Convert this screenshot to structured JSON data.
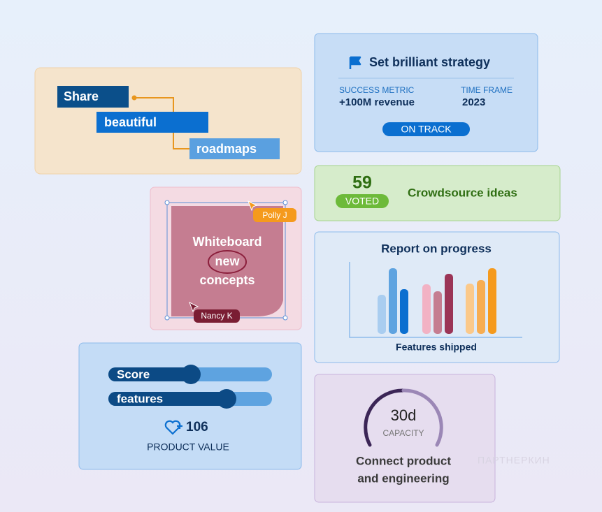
{
  "roadmap": {
    "words": [
      "Share",
      "beautiful",
      "roadmaps"
    ]
  },
  "strategy": {
    "title": "Set brilliant strategy",
    "metric_label": "SUCCESS METRIC",
    "metric_value": "+100M revenue",
    "time_label": "TIME FRAME",
    "time_value": "2023",
    "status": "ON TRACK"
  },
  "crowdsource": {
    "votes": 59,
    "votes_label": "VOTED",
    "title": "Crowdsource ideas"
  },
  "whiteboard": {
    "lines": [
      "Whiteboard",
      "new",
      "concepts"
    ],
    "cursors": [
      "Polly J",
      "Nancy K"
    ]
  },
  "report": {
    "title": "Report on progress",
    "axis_label": "Features shipped"
  },
  "value": {
    "sliders": [
      "Score",
      "features"
    ],
    "score": 106,
    "label": "PRODUCT VALUE"
  },
  "capacity": {
    "value": "30d",
    "label": "CAPACITY",
    "title_lines": [
      "Connect product",
      "and engineering"
    ]
  },
  "watermark": "ПАРТНЕРКИН"
}
